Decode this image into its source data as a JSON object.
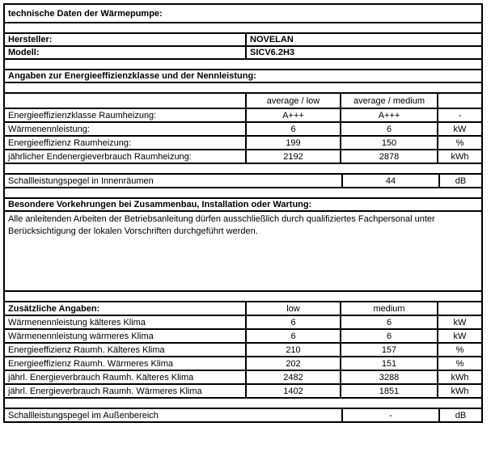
{
  "document": {
    "title": "technische Daten der Wärmepumpe:",
    "manufacturer": {
      "label": "Hersteller:",
      "value": "NOVELAN"
    },
    "model": {
      "label": "Modell:",
      "value": "SICV6.2H3"
    }
  },
  "energy_section": {
    "title": "Angaben zur Energieeffizienzklasse und der Nennleistung:",
    "col_low": "average / low",
    "col_medium": "average / medium",
    "rows": [
      {
        "label": "Energieeffizienzklasse Raumheizung:",
        "low": "A+++",
        "medium": "A+++",
        "unit": "-"
      },
      {
        "label": "Wärmenennleistung:",
        "low": "6",
        "medium": "6",
        "unit": "kW"
      },
      {
        "label": "Energieeffizienz Raumheizung:",
        "low": "199",
        "medium": "150",
        "unit": "%"
      },
      {
        "label": "jährlicher Endenergieverbrauch Raumheizung:",
        "low": "2192",
        "medium": "2878",
        "unit": "kWh"
      }
    ],
    "sound_indoor": {
      "label": "Schallleistungspegel in Innenräumen",
      "value": "44",
      "unit": "dB"
    }
  },
  "precautions": {
    "title": "Besondere Vorkehrungen bei Zusammenbau, Installation oder Wartung:",
    "text": "Alle anleitenden Arbeiten der Betriebsanleitung dürfen ausschließlich durch qualifiziertes Fachpersonal unter Berücksichtigung der lokalen Vorschriften durchgeführt werden."
  },
  "additional_section": {
    "title": "Zusätzliche Angaben:",
    "col_low": "low",
    "col_medium": "medium",
    "rows": [
      {
        "label": "Wärmenennleistung kälteres Klima",
        "low": "6",
        "medium": "6",
        "unit": "kW"
      },
      {
        "label": "Wärmenennleistung wärmeres Klima",
        "low": "6",
        "medium": "6",
        "unit": "kW"
      },
      {
        "label": "Energieeffizienz Raumh. Kälteres Klima",
        "low": "210",
        "medium": "157",
        "unit": "%"
      },
      {
        "label": "Energieeffizienz Raumh. Wärmeres Klima",
        "low": "202",
        "medium": "151",
        "unit": "%"
      },
      {
        "label": "jährl. Energieverbrauch Raumh. Kälteres Klima",
        "low": "2482",
        "medium": "3288",
        "unit": "kWh"
      },
      {
        "label": "jährl. Energieverbrauch Raumh. Wärmeres Klima",
        "low": "1402",
        "medium": "1851",
        "unit": "kWh"
      }
    ],
    "sound_outdoor": {
      "label": "Schallleistungspegel im Außenbereich",
      "value": "-",
      "unit": "dB"
    }
  },
  "colors": {
    "border": "#000000",
    "background": "#ffffff",
    "text": "#000000"
  }
}
